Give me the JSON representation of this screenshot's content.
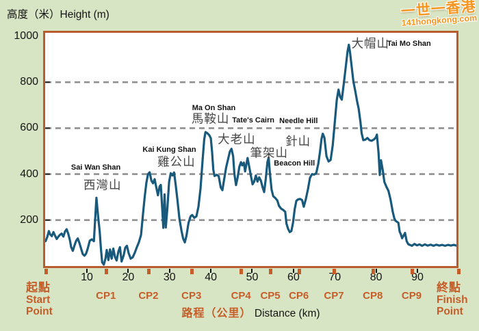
{
  "title": {
    "y_axis": "高度（米）Height (m)"
  },
  "watermark": {
    "line1": "一世一香港",
    "line2": "141hongkong.com"
  },
  "colors": {
    "page_bg": "#d8e5c4",
    "plot_bg": "#ffffff",
    "plot_border": "#b85c30",
    "line": "#18597c",
    "grid": "#8f8f8f",
    "accent_orange": "#c65d28",
    "text_black": "#141414",
    "peak_label_gray": "#464646"
  },
  "chart_data": {
    "type": "line",
    "title": "MacLehose Trail elevation profile",
    "ylabel": "高度（米）Height (m)",
    "xlabel_zh": "路程（公里）",
    "xlabel_en": "Distance (km)",
    "xlim": [
      0,
      100
    ],
    "ylim": [
      0,
      1000
    ],
    "x_ticks": [
      10,
      20,
      30,
      40,
      50,
      60,
      70,
      80,
      90
    ],
    "y_ticks": [
      1000,
      800,
      600,
      400,
      200
    ],
    "gridlines_m": [
      800,
      600,
      400,
      200
    ],
    "grid_style": "horizontal dashed",
    "legend": "none",
    "start": {
      "zh": "起點",
      "en": [
        "Start",
        "Point"
      ],
      "km": 0
    },
    "finish": {
      "zh": "終點",
      "en": [
        "Finish",
        "Point"
      ],
      "km": 100
    },
    "checkpoints": [
      {
        "label": "CP1",
        "km": 14.6
      },
      {
        "label": "CP2",
        "km": 24.9
      },
      {
        "label": "CP3",
        "km": 35.3
      },
      {
        "label": "CP4",
        "km": 47.3
      },
      {
        "label": "CP5",
        "km": 54.4
      },
      {
        "label": "CP6",
        "km": 61.3
      },
      {
        "label": "CP7",
        "km": 69.8
      },
      {
        "label": "CP8",
        "km": 79.2
      },
      {
        "label": "CP9",
        "km": 88.6
      }
    ],
    "peak_labels": [
      {
        "text": "Sai Wan Shan",
        "lang": "en",
        "x": 12.7,
        "y": 57.5
      },
      {
        "text": "西灣山",
        "lang": "zh",
        "x": 14.3,
        "y": 64.8
      },
      {
        "text": "Kai Kung Shan",
        "lang": "en",
        "x": 30.4,
        "y": 50.1
      },
      {
        "text": "雞公山",
        "lang": "zh",
        "x": 32.1,
        "y": 54.9
      },
      {
        "text": "Ma On Shan",
        "lang": "en",
        "x": 41.1,
        "y": 32.6
      },
      {
        "text": "馬鞍山",
        "lang": "zh",
        "x": 40.3,
        "y": 37.0
      },
      {
        "text": "Tate's Cairn",
        "lang": "en",
        "x": 50.6,
        "y": 37.8
      },
      {
        "text": "大老山",
        "lang": "zh",
        "x": 46.6,
        "y": 45.4
      },
      {
        "text": "Needle Hill",
        "lang": "en",
        "x": 61.5,
        "y": 38.0
      },
      {
        "text": "針山",
        "lang": "zh",
        "x": 61.4,
        "y": 46.4
      },
      {
        "text": "筆架山",
        "lang": "zh",
        "x": 54.4,
        "y": 51.4
      },
      {
        "text": "Beacon Hill",
        "lang": "en",
        "x": 60.5,
        "y": 55.9
      },
      {
        "text": "大帽山",
        "lang": "zh",
        "x": 78.8,
        "y": 5.3
      },
      {
        "text": "Tai Mo Shan",
        "lang": "en",
        "x": 88.1,
        "y": 5.5
      }
    ],
    "profile_km_m": [
      [
        0,
        108
      ],
      [
        0.4,
        126
      ],
      [
        0.8,
        152
      ],
      [
        1.1,
        138
      ],
      [
        1.5,
        130
      ],
      [
        1.9,
        148
      ],
      [
        2.3,
        132
      ],
      [
        2.7,
        118
      ],
      [
        3.1,
        128
      ],
      [
        3.5,
        136
      ],
      [
        3.9,
        141
      ],
      [
        4.3,
        128
      ],
      [
        4.7,
        150
      ],
      [
        5.1,
        160
      ],
      [
        5.5,
        140
      ],
      [
        5.9,
        112
      ],
      [
        6.2,
        82
      ],
      [
        6.6,
        66
      ],
      [
        7,
        90
      ],
      [
        7.4,
        110
      ],
      [
        7.8,
        120
      ],
      [
        8.2,
        100
      ],
      [
        8.6,
        76
      ],
      [
        9,
        52
      ],
      [
        9.4,
        45
      ],
      [
        9.8,
        54
      ],
      [
        10.2,
        76
      ],
      [
        10.7,
        110
      ],
      [
        11.2,
        116
      ],
      [
        11.7,
        108
      ],
      [
        12,
        200
      ],
      [
        12.3,
        297
      ],
      [
        12.7,
        218
      ],
      [
        13.1,
        150
      ],
      [
        13.4,
        75
      ],
      [
        13.7,
        16
      ],
      [
        14.1,
        6
      ],
      [
        14.5,
        32
      ],
      [
        14.8,
        70
      ],
      [
        15.2,
        26
      ],
      [
        15.6,
        72
      ],
      [
        16,
        32
      ],
      [
        16.4,
        76
      ],
      [
        16.8,
        40
      ],
      [
        17.2,
        24
      ],
      [
        17.6,
        62
      ],
      [
        18,
        82
      ],
      [
        18.4,
        20
      ],
      [
        18.9,
        46
      ],
      [
        19.3,
        80
      ],
      [
        19.7,
        88
      ],
      [
        20.1,
        56
      ],
      [
        20.6,
        32
      ],
      [
        21.1,
        38
      ],
      [
        21.6,
        58
      ],
      [
        22.1,
        82
      ],
      [
        22.6,
        104
      ],
      [
        23.1,
        135
      ],
      [
        23.6,
        230
      ],
      [
        24,
        302
      ],
      [
        24.4,
        362
      ],
      [
        24.8,
        400
      ],
      [
        25.2,
        408
      ],
      [
        25.6,
        372
      ],
      [
        26,
        360
      ],
      [
        26.4,
        378
      ],
      [
        26.8,
        342
      ],
      [
        27.2,
        308
      ],
      [
        27.6,
        346
      ],
      [
        27.9,
        353
      ],
      [
        28.2,
        258
      ],
      [
        28.5,
        166
      ],
      [
        28.8,
        312
      ],
      [
        29.1,
        168
      ],
      [
        29.5,
        256
      ],
      [
        29.9,
        366
      ],
      [
        30.3,
        404
      ],
      [
        30.7,
        394
      ],
      [
        31.1,
        407
      ],
      [
        31.5,
        352
      ],
      [
        31.9,
        290
      ],
      [
        32.4,
        206
      ],
      [
        32.9,
        154
      ],
      [
        33.3,
        120
      ],
      [
        33.7,
        103
      ],
      [
        34.1,
        132
      ],
      [
        34.6,
        188
      ],
      [
        35.1,
        216
      ],
      [
        35.5,
        222
      ],
      [
        36,
        210
      ],
      [
        36.5,
        216
      ],
      [
        37,
        258
      ],
      [
        37.5,
        336
      ],
      [
        38,
        458
      ],
      [
        38.4,
        550
      ],
      [
        38.7,
        583
      ],
      [
        39.1,
        579
      ],
      [
        39.6,
        570
      ],
      [
        40,
        556
      ],
      [
        40.3,
        498
      ],
      [
        40.6,
        420
      ],
      [
        40.9,
        392
      ],
      [
        41.4,
        397
      ],
      [
        41.9,
        391
      ],
      [
        42.4,
        342
      ],
      [
        42.8,
        330
      ],
      [
        43.2,
        374
      ],
      [
        43.7,
        428
      ],
      [
        44.2,
        468
      ],
      [
        44.6,
        498
      ],
      [
        45,
        510
      ],
      [
        45.4,
        478
      ],
      [
        45.7,
        402
      ],
      [
        46.1,
        352
      ],
      [
        46.5,
        386
      ],
      [
        46.9,
        432
      ],
      [
        47.3,
        452
      ],
      [
        47.6,
        438
      ],
      [
        48,
        450
      ],
      [
        48.3,
        412
      ],
      [
        48.6,
        442
      ],
      [
        48.9,
        470
      ],
      [
        49.3,
        432
      ],
      [
        49.7,
        392
      ],
      [
        50.1,
        356
      ],
      [
        50.5,
        368
      ],
      [
        50.9,
        394
      ],
      [
        51.3,
        368
      ],
      [
        51.7,
        386
      ],
      [
        52.1,
        372
      ],
      [
        52.5,
        344
      ],
      [
        52.9,
        322
      ],
      [
        53.3,
        380
      ],
      [
        53.7,
        452
      ],
      [
        54,
        472
      ],
      [
        54.3,
        405
      ],
      [
        54.7,
        332
      ],
      [
        55.1,
        304
      ],
      [
        55.6,
        296
      ],
      [
        56.1,
        285
      ],
      [
        56.5,
        262
      ],
      [
        57,
        250
      ],
      [
        57.5,
        244
      ],
      [
        58,
        236
      ],
      [
        58.3,
        185
      ],
      [
        58.7,
        162
      ],
      [
        59.1,
        148
      ],
      [
        59.5,
        152
      ],
      [
        59.9,
        188
      ],
      [
        60.3,
        248
      ],
      [
        60.7,
        284
      ],
      [
        61.1,
        290
      ],
      [
        61.6,
        292
      ],
      [
        62.1,
        287
      ],
      [
        62.5,
        258
      ],
      [
        63,
        292
      ],
      [
        63.5,
        334
      ],
      [
        64,
        384
      ],
      [
        64.5,
        400
      ],
      [
        65,
        398
      ],
      [
        65.5,
        404
      ],
      [
        66,
        444
      ],
      [
        66.4,
        494
      ],
      [
        66.8,
        554
      ],
      [
        67.1,
        576
      ],
      [
        67.5,
        558
      ],
      [
        68,
        478
      ],
      [
        68.5,
        455
      ],
      [
        69,
        462
      ],
      [
        69.5,
        524
      ],
      [
        70,
        624
      ],
      [
        70.5,
        724
      ],
      [
        70.9,
        768
      ],
      [
        71.3,
        736
      ],
      [
        71.7,
        724
      ],
      [
        72.2,
        796
      ],
      [
        72.7,
        872
      ],
      [
        73.1,
        934
      ],
      [
        73.4,
        963
      ],
      [
        73.7,
        928
      ],
      [
        74.1,
        866
      ],
      [
        74.5,
        804
      ],
      [
        75,
        758
      ],
      [
        75.4,
        718
      ],
      [
        75.8,
        684
      ],
      [
        76.2,
        628
      ],
      [
        76.5,
        578
      ],
      [
        76.9,
        548
      ],
      [
        77.4,
        550
      ],
      [
        77.9,
        557
      ],
      [
        78.4,
        548
      ],
      [
        78.9,
        545
      ],
      [
        79.4,
        550
      ],
      [
        79.9,
        558
      ],
      [
        80.2,
        572
      ],
      [
        80.6,
        492
      ],
      [
        80.9,
        396
      ],
      [
        81.2,
        460
      ],
      [
        81.6,
        418
      ],
      [
        82,
        366
      ],
      [
        82.5,
        345
      ],
      [
        83,
        327
      ],
      [
        83.5,
        290
      ],
      [
        84,
        238
      ],
      [
        84.4,
        208
      ],
      [
        84.7,
        197
      ],
      [
        85.1,
        192
      ],
      [
        85.4,
        188
      ],
      [
        85.7,
        150
      ],
      [
        86,
        138
      ],
      [
        86.3,
        121
      ],
      [
        86.7,
        134
      ],
      [
        87,
        144
      ],
      [
        87.4,
        108
      ],
      [
        87.8,
        95
      ],
      [
        88.2,
        92
      ],
      [
        88.7,
        88
      ],
      [
        89.3,
        96
      ],
      [
        89.9,
        90
      ],
      [
        90.5,
        94
      ],
      [
        91.1,
        88
      ],
      [
        91.8,
        94
      ],
      [
        92.5,
        89
      ],
      [
        93.2,
        93
      ],
      [
        93.9,
        88
      ],
      [
        94.6,
        93
      ],
      [
        95.3,
        89
      ],
      [
        96,
        92
      ],
      [
        96.7,
        88
      ],
      [
        97.4,
        92
      ],
      [
        98.1,
        89
      ],
      [
        98.8,
        92
      ],
      [
        99.4,
        89
      ],
      [
        100,
        90
      ]
    ]
  }
}
